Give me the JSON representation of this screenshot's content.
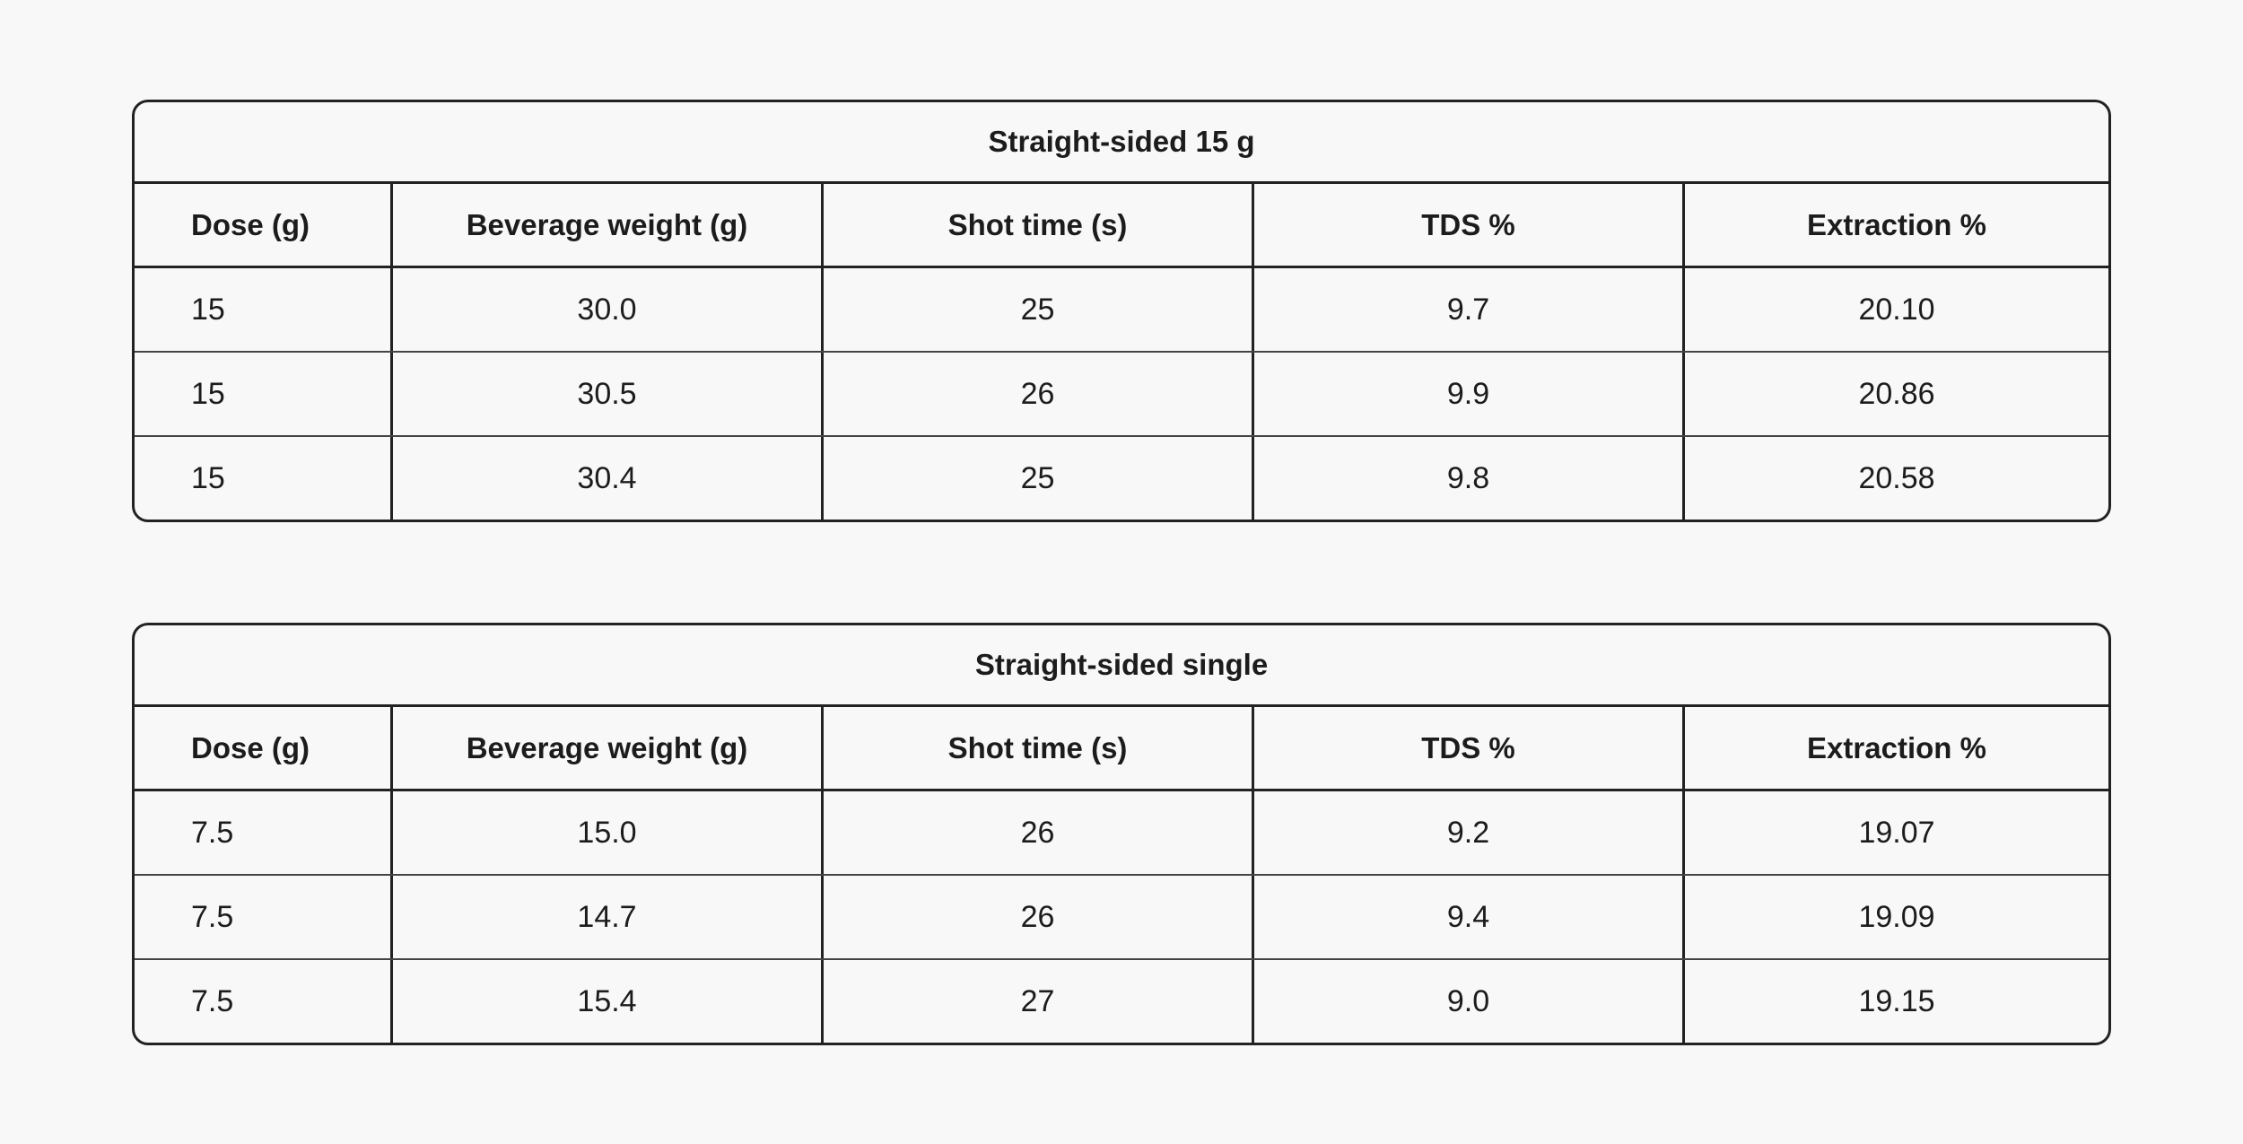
{
  "tables": [
    {
      "title": "Straight-sided 15 g",
      "headers": [
        "Dose (g)",
        "Beverage weight (g)",
        "Shot time (s)",
        "TDS %",
        "Extraction %"
      ],
      "rows": [
        [
          "15",
          "30.0",
          "25",
          "9.7",
          "20.10"
        ],
        [
          "15",
          "30.5",
          "26",
          "9.9",
          "20.86"
        ],
        [
          "15",
          "30.4",
          "25",
          "9.8",
          "20.58"
        ]
      ]
    },
    {
      "title": "Straight-sided single",
      "headers": [
        "Dose (g)",
        "Beverage weight (g)",
        "Shot time (s)",
        "TDS %",
        "Extraction %"
      ],
      "rows": [
        [
          "7.5",
          "15.0",
          "26",
          "9.2",
          "19.07"
        ],
        [
          "7.5",
          "14.7",
          "26",
          "9.4",
          "19.09"
        ],
        [
          "7.5",
          "15.4",
          "27",
          "9.0",
          "19.15"
        ]
      ]
    }
  ]
}
